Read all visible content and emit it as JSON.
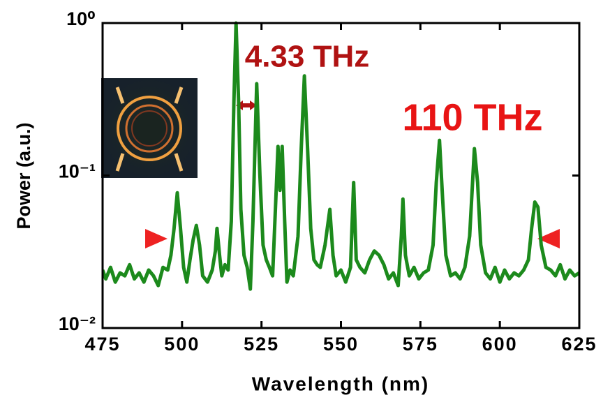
{
  "chart_data": {
    "type": "line",
    "xlabel": "Wavelength (nm)",
    "ylabel": "Power (a.u.)",
    "xlim": [
      475,
      625
    ],
    "xticks": [
      475,
      500,
      525,
      550,
      575,
      600,
      625
    ],
    "ylim": [
      0.01,
      1
    ],
    "log_y": true,
    "yticks": [
      {
        "value": 0.01,
        "label": "10⁻²"
      },
      {
        "value": 0.1,
        "label": "10⁻¹"
      },
      {
        "value": 1,
        "label": "10⁰"
      }
    ],
    "annotations": [
      {
        "text": "4.33 THz",
        "color": "#b01212"
      },
      {
        "text": "110 THz",
        "color": "#e81414"
      }
    ],
    "color": "#1c8a1c",
    "x": [
      475,
      476,
      477.5,
      479,
      480.5,
      482,
      483.5,
      485,
      486.5,
      488,
      489.5,
      491,
      492.5,
      494,
      495.5,
      496.5,
      497.5,
      498.5,
      499.5,
      500.5,
      501.5,
      502.5,
      503.5,
      504.5,
      505.5,
      506.5,
      508,
      509.5,
      510.5,
      511,
      511.8,
      512.5,
      513.5,
      514.5,
      515.5,
      516.3,
      517,
      517.8,
      518.5,
      519.5,
      520.5,
      521.5,
      522.3,
      523.5,
      524.5,
      525.5,
      526.5,
      527.5,
      528.5,
      529.5,
      530.2,
      530.8,
      531.5,
      532.3,
      533,
      534,
      535,
      536.5,
      537.5,
      538.5,
      539.5,
      540.5,
      541.5,
      542.5,
      543.5,
      545,
      546.5,
      547.5,
      548.5,
      550,
      551.5,
      553,
      554,
      554.8,
      556,
      557.5,
      559,
      560.5,
      562,
      563.5,
      565,
      566.5,
      568,
      569,
      569.5,
      570.3,
      571.5,
      573,
      574.5,
      576,
      577.5,
      579,
      580,
      581,
      582,
      583,
      584.5,
      586,
      587.5,
      589,
      590.5,
      592,
      593,
      594,
      595.5,
      597,
      598.5,
      600,
      601.5,
      603,
      604.5,
      606,
      607.5,
      609,
      610,
      611,
      612,
      613,
      614.5,
      616,
      617.5,
      619,
      620.5,
      622,
      623.5,
      625
    ],
    "values": [
      0.024,
      0.021,
      0.025,
      0.02,
      0.023,
      0.022,
      0.026,
      0.021,
      0.023,
      0.02,
      0.024,
      0.022,
      0.019,
      0.025,
      0.024,
      0.03,
      0.045,
      0.077,
      0.045,
      0.025,
      0.02,
      0.028,
      0.038,
      0.047,
      0.035,
      0.022,
      0.02,
      0.024,
      0.032,
      0.045,
      0.03,
      0.022,
      0.026,
      0.024,
      0.05,
      0.3,
      1.0,
      0.3,
      0.06,
      0.03,
      0.025,
      0.018,
      0.05,
      0.4,
      0.1,
      0.035,
      0.028,
      0.025,
      0.022,
      0.07,
      0.155,
      0.08,
      0.155,
      0.05,
      0.02,
      0.024,
      0.022,
      0.04,
      0.15,
      0.45,
      0.15,
      0.045,
      0.028,
      0.026,
      0.025,
      0.035,
      0.06,
      0.03,
      0.022,
      0.024,
      0.02,
      0.025,
      0.09,
      0.028,
      0.025,
      0.023,
      0.028,
      0.032,
      0.03,
      0.026,
      0.021,
      0.023,
      0.019,
      0.04,
      0.07,
      0.03,
      0.022,
      0.025,
      0.021,
      0.023,
      0.024,
      0.035,
      0.09,
      0.17,
      0.07,
      0.03,
      0.022,
      0.023,
      0.021,
      0.025,
      0.04,
      0.15,
      0.09,
      0.035,
      0.023,
      0.021,
      0.025,
      0.02,
      0.024,
      0.021,
      0.023,
      0.022,
      0.024,
      0.028,
      0.045,
      0.067,
      0.062,
      0.035,
      0.025,
      0.024,
      0.022,
      0.026,
      0.021,
      0.024,
      0.022,
      0.023
    ]
  }
}
